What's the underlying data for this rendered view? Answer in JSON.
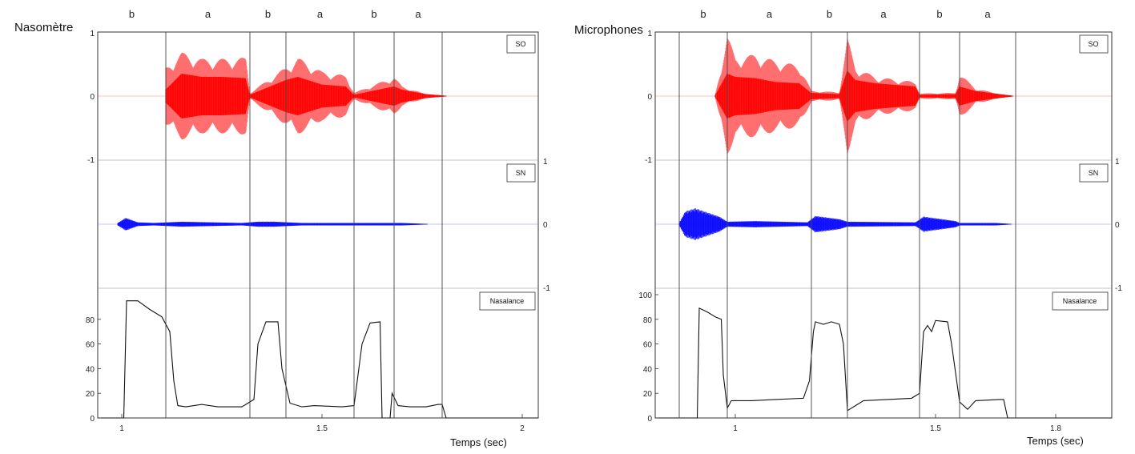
{
  "chart_data": [
    {
      "type": "line",
      "title": "Nasomètre",
      "xlabel": "Temps (sec)",
      "xlim": [
        0.94,
        2.04
      ],
      "xticks": [
        {
          "v": 1,
          "label": "1"
        },
        {
          "v": 1.5,
          "label": "1.5"
        },
        {
          "v": 2,
          "label": "2"
        }
      ],
      "segments": [
        {
          "label": "b",
          "start": 0.94,
          "end": 1.11
        },
        {
          "label": "a",
          "start": 1.11,
          "end": 1.32
        },
        {
          "label": "b",
          "start": 1.32,
          "end": 1.41
        },
        {
          "label": "a",
          "start": 1.41,
          "end": 1.58
        },
        {
          "label": "b",
          "start": 1.58,
          "end": 1.68
        },
        {
          "label": "a",
          "start": 1.68,
          "end": 1.8
        }
      ],
      "boundaries": [
        1.11,
        1.32,
        1.41,
        1.58,
        1.68,
        1.8
      ],
      "subplots": {
        "so": {
          "name": "SO",
          "color": "#ff0000",
          "ylim": [
            -1,
            1
          ],
          "yticks": [
            {
              "v": 1,
              "label": "1"
            },
            {
              "v": 0,
              "label": "0"
            },
            {
              "v": -1,
              "label": "-1"
            }
          ],
          "envelope": [
            {
              "x": 1.11,
              "inner": 0.1,
              "outer": 0.45
            },
            {
              "x": 1.15,
              "inner": 0.35,
              "outer": 0.68
            },
            {
              "x": 1.2,
              "inner": 0.3,
              "outer": 0.58
            },
            {
              "x": 1.25,
              "inner": 0.3,
              "outer": 0.58
            },
            {
              "x": 1.31,
              "inner": 0.28,
              "outer": 0.6
            },
            {
              "x": 1.32,
              "inner": 0.02,
              "outer": 0.05
            },
            {
              "x": 1.41,
              "inner": 0.25,
              "outer": 0.45
            },
            {
              "x": 1.44,
              "inner": 0.3,
              "outer": 0.6
            },
            {
              "x": 1.5,
              "inner": 0.18,
              "outer": 0.38
            },
            {
              "x": 1.56,
              "inner": 0.15,
              "outer": 0.32
            },
            {
              "x": 1.58,
              "inner": 0.02,
              "outer": 0.05
            },
            {
              "x": 1.68,
              "inner": 0.15,
              "outer": 0.3
            },
            {
              "x": 1.7,
              "inner": 0.1,
              "outer": 0.15
            },
            {
              "x": 1.76,
              "inner": 0.03,
              "outer": 0.03
            },
            {
              "x": 1.82,
              "inner": 0.0,
              "outer": 0.0
            }
          ]
        },
        "sn": {
          "name": "SN",
          "color": "#0000ff",
          "ylim": [
            -1,
            1
          ],
          "yticks": [
            {
              "v": 1,
              "label": "1"
            },
            {
              "v": 0,
              "label": "0"
            },
            {
              "v": -1,
              "label": "-1"
            }
          ],
          "envelope": [
            {
              "x": 0.99,
              "amp": 0.02
            },
            {
              "x": 1.01,
              "amp": 0.1
            },
            {
              "x": 1.04,
              "amp": 0.03
            },
            {
              "x": 1.08,
              "amp": 0.02
            },
            {
              "x": 1.15,
              "amp": 0.04
            },
            {
              "x": 1.3,
              "amp": 0.02
            },
            {
              "x": 1.34,
              "amp": 0.04
            },
            {
              "x": 1.38,
              "amp": 0.04
            },
            {
              "x": 1.45,
              "amp": 0.02
            },
            {
              "x": 1.6,
              "amp": 0.02
            },
            {
              "x": 1.7,
              "amp": 0.02
            },
            {
              "x": 1.78,
              "amp": 0.0
            }
          ]
        },
        "nasalance": {
          "name": "Nasalance",
          "color": "#111111",
          "ylim": [
            0,
            100
          ],
          "yticks": [
            {
              "v": 0,
              "label": "0"
            },
            {
              "v": 20,
              "label": "20"
            },
            {
              "v": 40,
              "label": "40"
            },
            {
              "v": 60,
              "label": "60"
            },
            {
              "v": 80,
              "label": "80"
            }
          ],
          "points": [
            [
              0.94,
              0
            ],
            [
              1.005,
              0
            ],
            [
              1.012,
              95
            ],
            [
              1.04,
              95
            ],
            [
              1.07,
              88
            ],
            [
              1.1,
              82
            ],
            [
              1.12,
              70
            ],
            [
              1.13,
              30
            ],
            [
              1.14,
              10
            ],
            [
              1.16,
              9
            ],
            [
              1.2,
              11
            ],
            [
              1.24,
              9
            ],
            [
              1.3,
              9
            ],
            [
              1.33,
              15
            ],
            [
              1.34,
              60
            ],
            [
              1.36,
              78
            ],
            [
              1.39,
              78
            ],
            [
              1.4,
              40
            ],
            [
              1.42,
              12
            ],
            [
              1.45,
              9
            ],
            [
              1.48,
              10
            ],
            [
              1.55,
              9
            ],
            [
              1.58,
              10
            ],
            [
              1.6,
              60
            ],
            [
              1.62,
              77
            ],
            [
              1.645,
              78
            ],
            [
              1.65,
              0
            ],
            [
              1.67,
              0
            ],
            [
              1.675,
              20
            ],
            [
              1.69,
              10
            ],
            [
              1.72,
              9
            ],
            [
              1.76,
              9
            ],
            [
              1.79,
              11
            ],
            [
              1.8,
              11
            ],
            [
              1.81,
              0
            ],
            [
              2.04,
              0
            ]
          ]
        }
      }
    },
    {
      "type": "line",
      "title": "Microphones",
      "xlabel": "Temps (sec)",
      "xlim": [
        0.8,
        1.94
      ],
      "xticks": [
        {
          "v": 1,
          "label": "1"
        },
        {
          "v": 1.5,
          "label": "1.5"
        },
        {
          "v": 1.8,
          "label": "1.8"
        }
      ],
      "segments": [
        {
          "label": "b",
          "start": 0.86,
          "end": 0.98
        },
        {
          "label": "a",
          "start": 0.98,
          "end": 1.19
        },
        {
          "label": "b",
          "start": 1.19,
          "end": 1.28
        },
        {
          "label": "a",
          "start": 1.28,
          "end": 1.46
        },
        {
          "label": "b",
          "start": 1.46,
          "end": 1.56
        },
        {
          "label": "a",
          "start": 1.56,
          "end": 1.7
        }
      ],
      "boundaries": [
        0.86,
        0.98,
        1.19,
        1.28,
        1.46,
        1.56,
        1.7
      ],
      "subplots": {
        "so": {
          "name": "SO",
          "color": "#ff0000",
          "ylim": [
            -1,
            1
          ],
          "yticks": [
            {
              "v": 1,
              "label": "1"
            },
            {
              "v": 0,
              "label": "0"
            },
            {
              "v": -1,
              "label": "-1"
            }
          ],
          "envelope": [
            {
              "x": 0.95,
              "inner": 0.01,
              "outer": 0.02
            },
            {
              "x": 0.98,
              "inner": 0.35,
              "outer": 0.95
            },
            {
              "x": 1.0,
              "inner": 0.3,
              "outer": 0.6
            },
            {
              "x": 1.05,
              "inner": 0.28,
              "outer": 0.65
            },
            {
              "x": 1.1,
              "inner": 0.22,
              "outer": 0.55
            },
            {
              "x": 1.16,
              "inner": 0.2,
              "outer": 0.48
            },
            {
              "x": 1.19,
              "inner": 0.05,
              "outer": 0.08
            },
            {
              "x": 1.26,
              "inner": 0.03,
              "outer": 0.06
            },
            {
              "x": 1.28,
              "inner": 0.4,
              "outer": 0.9
            },
            {
              "x": 1.3,
              "inner": 0.25,
              "outer": 0.45
            },
            {
              "x": 1.35,
              "inner": 0.2,
              "outer": 0.3
            },
            {
              "x": 1.45,
              "inner": 0.15,
              "outer": 0.22
            },
            {
              "x": 1.46,
              "inner": 0.02,
              "outer": 0.04
            },
            {
              "x": 1.55,
              "inner": 0.03,
              "outer": 0.05
            },
            {
              "x": 1.56,
              "inner": 0.15,
              "outer": 0.35
            },
            {
              "x": 1.6,
              "inner": 0.08,
              "outer": 0.12
            },
            {
              "x": 1.66,
              "inner": 0.03,
              "outer": 0.03
            },
            {
              "x": 1.7,
              "inner": 0.0,
              "outer": 0.0
            }
          ]
        },
        "sn": {
          "name": "SN",
          "color": "#0000ff",
          "ylim": [
            -1,
            1
          ],
          "yticks": [
            {
              "v": 1,
              "label": "1"
            },
            {
              "v": 0,
              "label": "0"
            },
            {
              "v": -1,
              "label": "-1"
            }
          ],
          "envelope": [
            {
              "x": 0.86,
              "amp": 0.02
            },
            {
              "x": 0.875,
              "amp": 0.2
            },
            {
              "x": 0.9,
              "amp": 0.25
            },
            {
              "x": 0.96,
              "amp": 0.12
            },
            {
              "x": 0.98,
              "amp": 0.04
            },
            {
              "x": 1.05,
              "amp": 0.05
            },
            {
              "x": 1.18,
              "amp": 0.03
            },
            {
              "x": 1.2,
              "amp": 0.13
            },
            {
              "x": 1.26,
              "amp": 0.08
            },
            {
              "x": 1.28,
              "amp": 0.04
            },
            {
              "x": 1.45,
              "amp": 0.03
            },
            {
              "x": 1.47,
              "amp": 0.12
            },
            {
              "x": 1.55,
              "amp": 0.05
            },
            {
              "x": 1.56,
              "amp": 0.02
            },
            {
              "x": 1.65,
              "amp": 0.02
            },
            {
              "x": 1.7,
              "amp": 0.0
            }
          ]
        },
        "nasalance": {
          "name": "Nasalance",
          "color": "#111111",
          "ylim": [
            0,
            100
          ],
          "yticks": [
            {
              "v": 0,
              "label": "0"
            },
            {
              "v": 20,
              "label": "20"
            },
            {
              "v": 40,
              "label": "40"
            },
            {
              "v": 60,
              "label": "60"
            },
            {
              "v": 80,
              "label": "80"
            },
            {
              "v": 100,
              "label": "100"
            }
          ],
          "points": [
            [
              0.8,
              0
            ],
            [
              0.905,
              0
            ],
            [
              0.91,
              89
            ],
            [
              0.93,
              86
            ],
            [
              0.95,
              82
            ],
            [
              0.965,
              80
            ],
            [
              0.97,
              35
            ],
            [
              0.98,
              8
            ],
            [
              0.99,
              14
            ],
            [
              1.04,
              14
            ],
            [
              1.1,
              15
            ],
            [
              1.17,
              16
            ],
            [
              1.185,
              30
            ],
            [
              1.195,
              70
            ],
            [
              1.2,
              78
            ],
            [
              1.22,
              76
            ],
            [
              1.24,
              78
            ],
            [
              1.26,
              76
            ],
            [
              1.27,
              60
            ],
            [
              1.28,
              6
            ],
            [
              1.3,
              10
            ],
            [
              1.32,
              14
            ],
            [
              1.38,
              15
            ],
            [
              1.44,
              16
            ],
            [
              1.46,
              20
            ],
            [
              1.47,
              70
            ],
            [
              1.48,
              75
            ],
            [
              1.49,
              70
            ],
            [
              1.5,
              79
            ],
            [
              1.53,
              78
            ],
            [
              1.54,
              60
            ],
            [
              1.56,
              13
            ],
            [
              1.58,
              7
            ],
            [
              1.6,
              14
            ],
            [
              1.66,
              15
            ],
            [
              1.67,
              15
            ],
            [
              1.68,
              0
            ],
            [
              1.94,
              0
            ]
          ]
        }
      }
    }
  ]
}
